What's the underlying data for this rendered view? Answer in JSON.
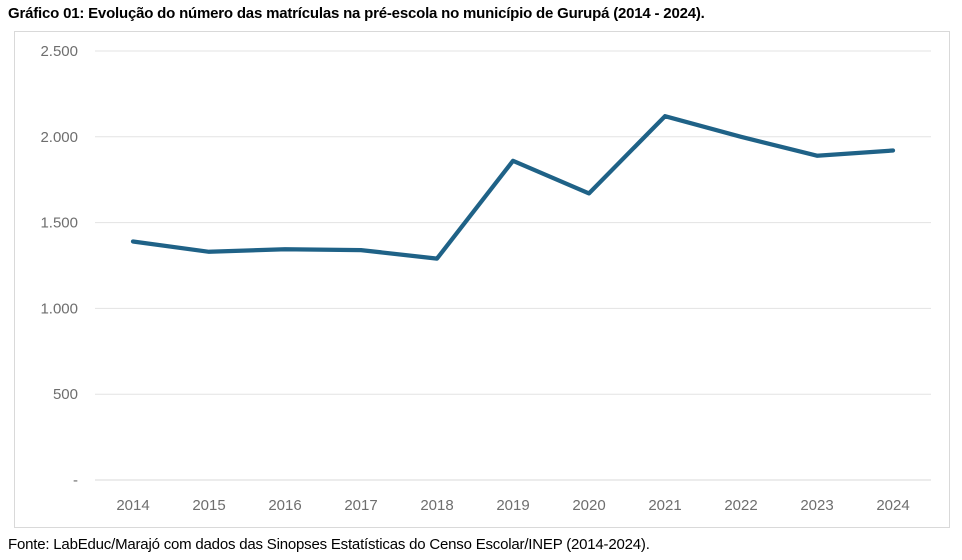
{
  "header": {
    "title": "Gráfico 01: Evolução do número das matrículas na pré-escola no município de Gurupá (2014 - 2024)."
  },
  "footer": {
    "source": "Fonte: LabEduc/Marajó com dados das Sinopses Estatísticas do Censo Escolar/INEP (2014-2024)."
  },
  "chart_data": {
    "type": "line",
    "title": "Gráfico 01: Evolução do número das matrículas na pré-escola no município de Gurupá (2014 - 2024).",
    "categories": [
      "2014",
      "2015",
      "2016",
      "2017",
      "2018",
      "2019",
      "2020",
      "2021",
      "2022",
      "2023",
      "2024"
    ],
    "values": [
      1390,
      1330,
      1345,
      1340,
      1290,
      1860,
      1670,
      2120,
      2000,
      1890,
      1920
    ],
    "xlabel": "",
    "ylabel": "",
    "ylim": [
      0,
      2500
    ],
    "ytick_values": [
      0,
      500,
      1000,
      1500,
      2000,
      2500
    ],
    "ytick_labels": [
      "-",
      "500",
      "1.000",
      "1.500",
      "2.000",
      "2.500"
    ],
    "grid": "horizontal",
    "legend": "none",
    "line_color": "#1F6287",
    "line_width": 4.25,
    "gridline_color": "#E3E3E3",
    "axis_line_color": "#D9D9D9",
    "tick_label_color": "#6E6E6E",
    "frame_border_color": "#D9D9D9"
  }
}
